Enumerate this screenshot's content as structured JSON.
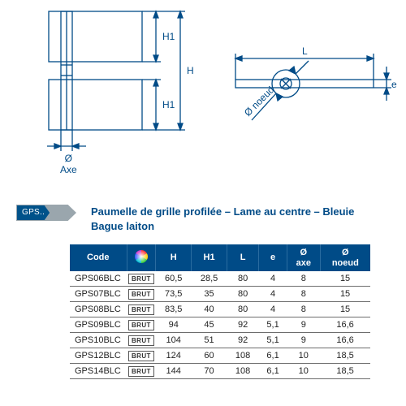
{
  "diagram": {
    "stroke": "#004b87",
    "labels": {
      "H1_top": "H1",
      "H": "H",
      "H1_bot": "H1",
      "axe": "Ø\nAxe",
      "L": "L",
      "e": "e",
      "noeud": "Ø noeud"
    }
  },
  "badge": "GPS..",
  "title": "Paumelle de grille profilée – Lame au centre – Bleuie\nBague laiton",
  "table": {
    "header_bg": "#004b87",
    "columns": [
      "Code",
      "",
      "H",
      "H1",
      "L",
      "e",
      "Ø\naxe",
      "Ø\nnoeud"
    ],
    "finish_label": "BRUT",
    "rows": [
      {
        "code": "GPS06BLC",
        "H": "60,5",
        "H1": "28,5",
        "L": "80",
        "e": "4",
        "axe": "8",
        "noeud": "15"
      },
      {
        "code": "GPS07BLC",
        "H": "73,5",
        "H1": "35",
        "L": "80",
        "e": "4",
        "axe": "8",
        "noeud": "15"
      },
      {
        "code": "GPS08BLC",
        "H": "83,5",
        "H1": "40",
        "L": "80",
        "e": "4",
        "axe": "8",
        "noeud": "15"
      },
      {
        "code": "GPS09BLC",
        "H": "94",
        "H1": "45",
        "L": "92",
        "e": "5,1",
        "axe": "9",
        "noeud": "16,6"
      },
      {
        "code": "GPS10BLC",
        "H": "104",
        "H1": "51",
        "L": "92",
        "e": "5,1",
        "axe": "9",
        "noeud": "16,6"
      },
      {
        "code": "GPS12BLC",
        "H": "124",
        "H1": "60",
        "L": "108",
        "e": "6,1",
        "axe": "10",
        "noeud": "18,5"
      },
      {
        "code": "GPS14BLC",
        "H": "144",
        "H1": "70",
        "L": "108",
        "e": "6,1",
        "axe": "10",
        "noeud": "18,5"
      }
    ]
  }
}
